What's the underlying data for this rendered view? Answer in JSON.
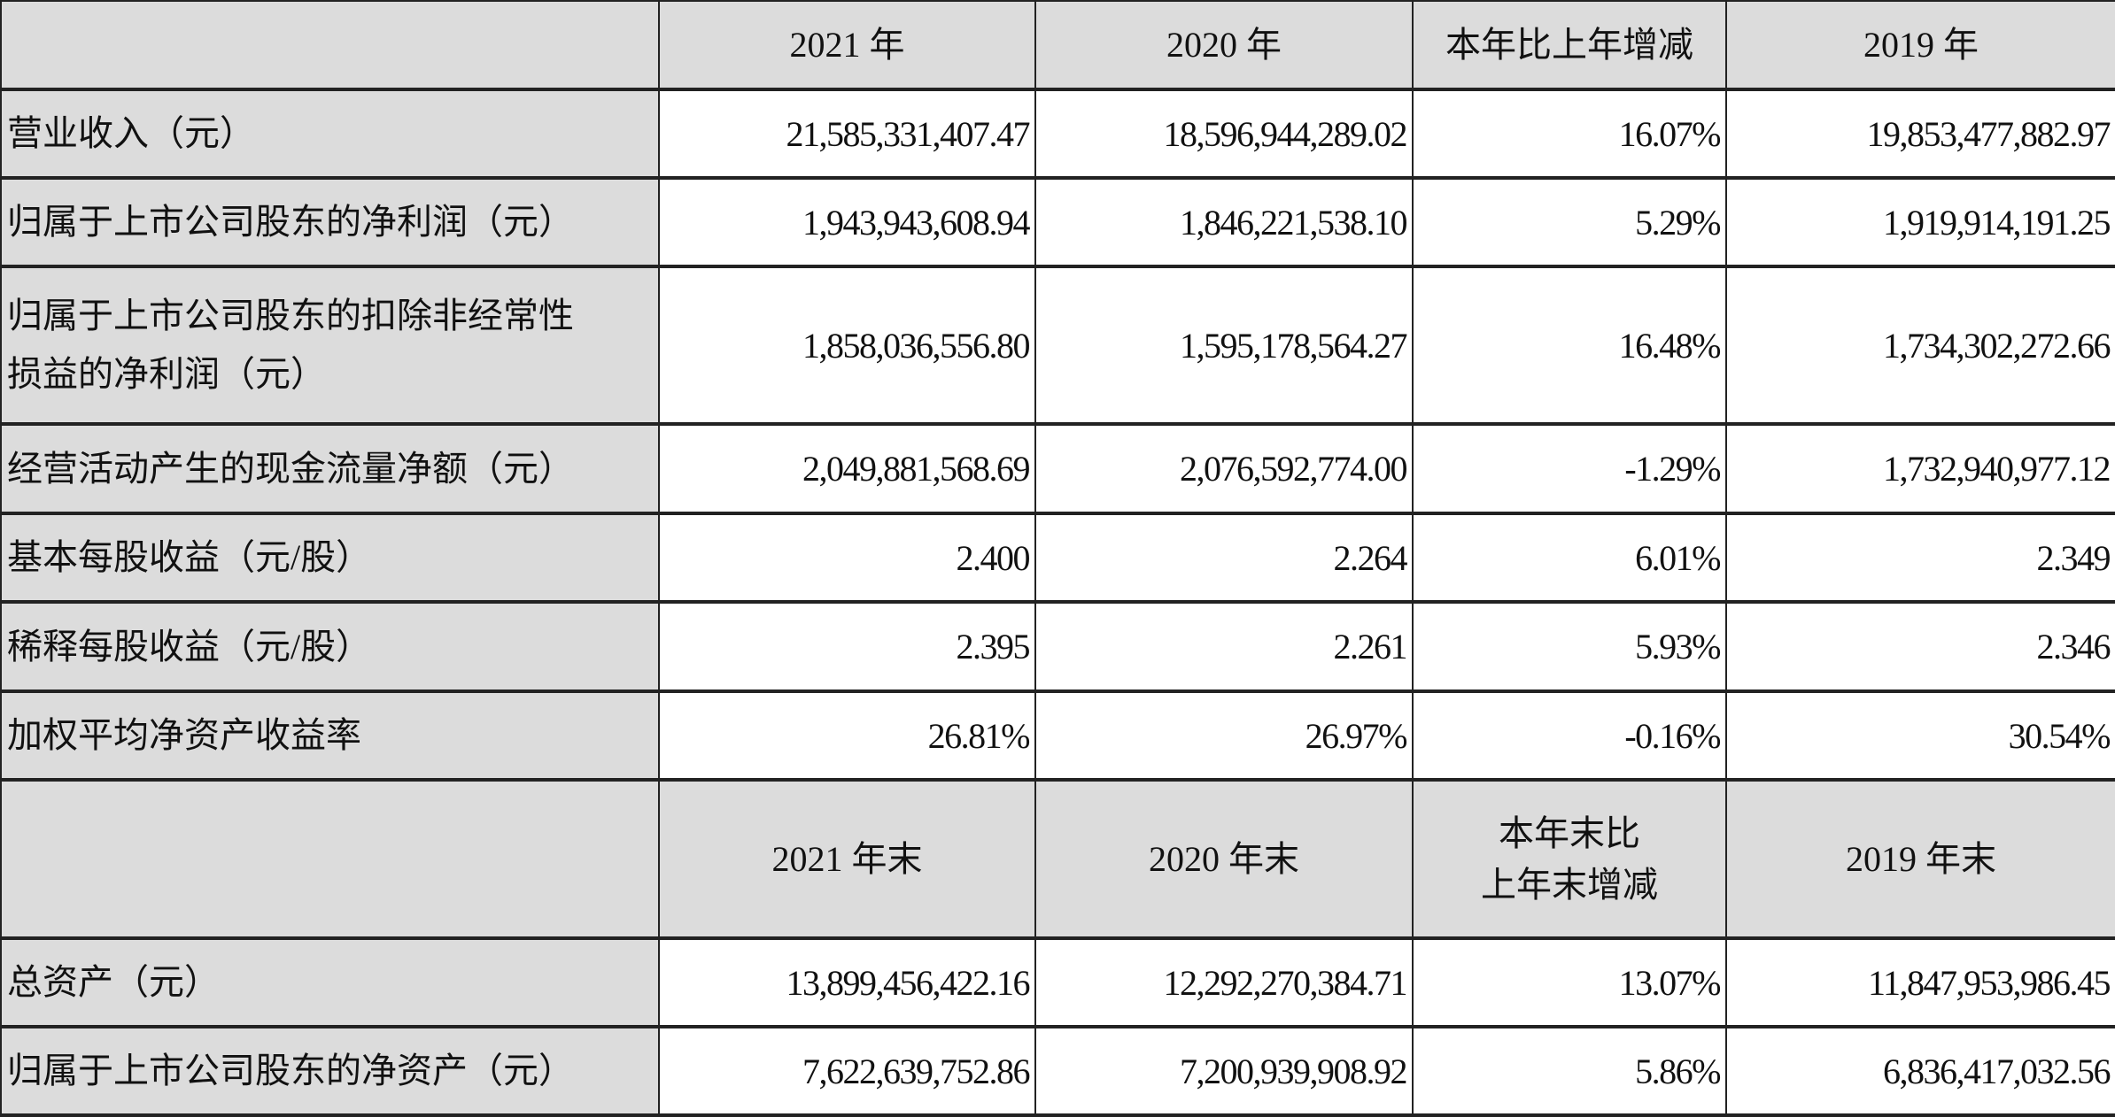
{
  "header": [
    "",
    "2021 年",
    "2020 年",
    "本年比上年增减",
    "2019 年"
  ],
  "rows_a": [
    {
      "label": "营业收入（元）",
      "values": [
        "21,585,331,407.47",
        "18,596,944,289.02",
        "16.07%",
        "19,853,477,882.97"
      ]
    },
    {
      "label": "归属于上市公司股东的净利润（元）",
      "values": [
        "1,943,943,608.94",
        "1,846,221,538.10",
        "5.29%",
        "1,919,914,191.25"
      ]
    },
    {
      "label_line1": "归属于上市公司股东的扣除非经常性",
      "label_line2": "损益的净利润（元）",
      "values": [
        "1,858,036,556.80",
        "1,595,178,564.27",
        "16.48%",
        "1,734,302,272.66"
      ]
    },
    {
      "label": "经营活动产生的现金流量净额（元）",
      "values": [
        "2,049,881,568.69",
        "2,076,592,774.00",
        "-1.29%",
        "1,732,940,977.12"
      ]
    },
    {
      "label": "基本每股收益（元/股）",
      "values": [
        "2.400",
        "2.264",
        "6.01%",
        "2.349"
      ]
    },
    {
      "label": "稀释每股收益（元/股）",
      "values": [
        "2.395",
        "2.261",
        "5.93%",
        "2.346"
      ]
    },
    {
      "label": "加权平均净资产收益率",
      "values": [
        "26.81%",
        "26.97%",
        "-0.16%",
        "30.54%"
      ]
    }
  ],
  "header2": {
    "c1": "2021 年末",
    "c2": "2020 年末",
    "c3_line1": "本年末比",
    "c3_line2": "上年末增减",
    "c4": "2019 年末"
  },
  "rows_b": [
    {
      "label": "总资产（元）",
      "values": [
        "13,899,456,422.16",
        "12,292,270,384.71",
        "13.07%",
        "11,847,953,986.45"
      ]
    },
    {
      "label": "归属于上市公司股东的净资产（元）",
      "values": [
        "7,622,639,752.86",
        "7,200,939,908.92",
        "5.86%",
        "6,836,417,032.56"
      ]
    }
  ]
}
